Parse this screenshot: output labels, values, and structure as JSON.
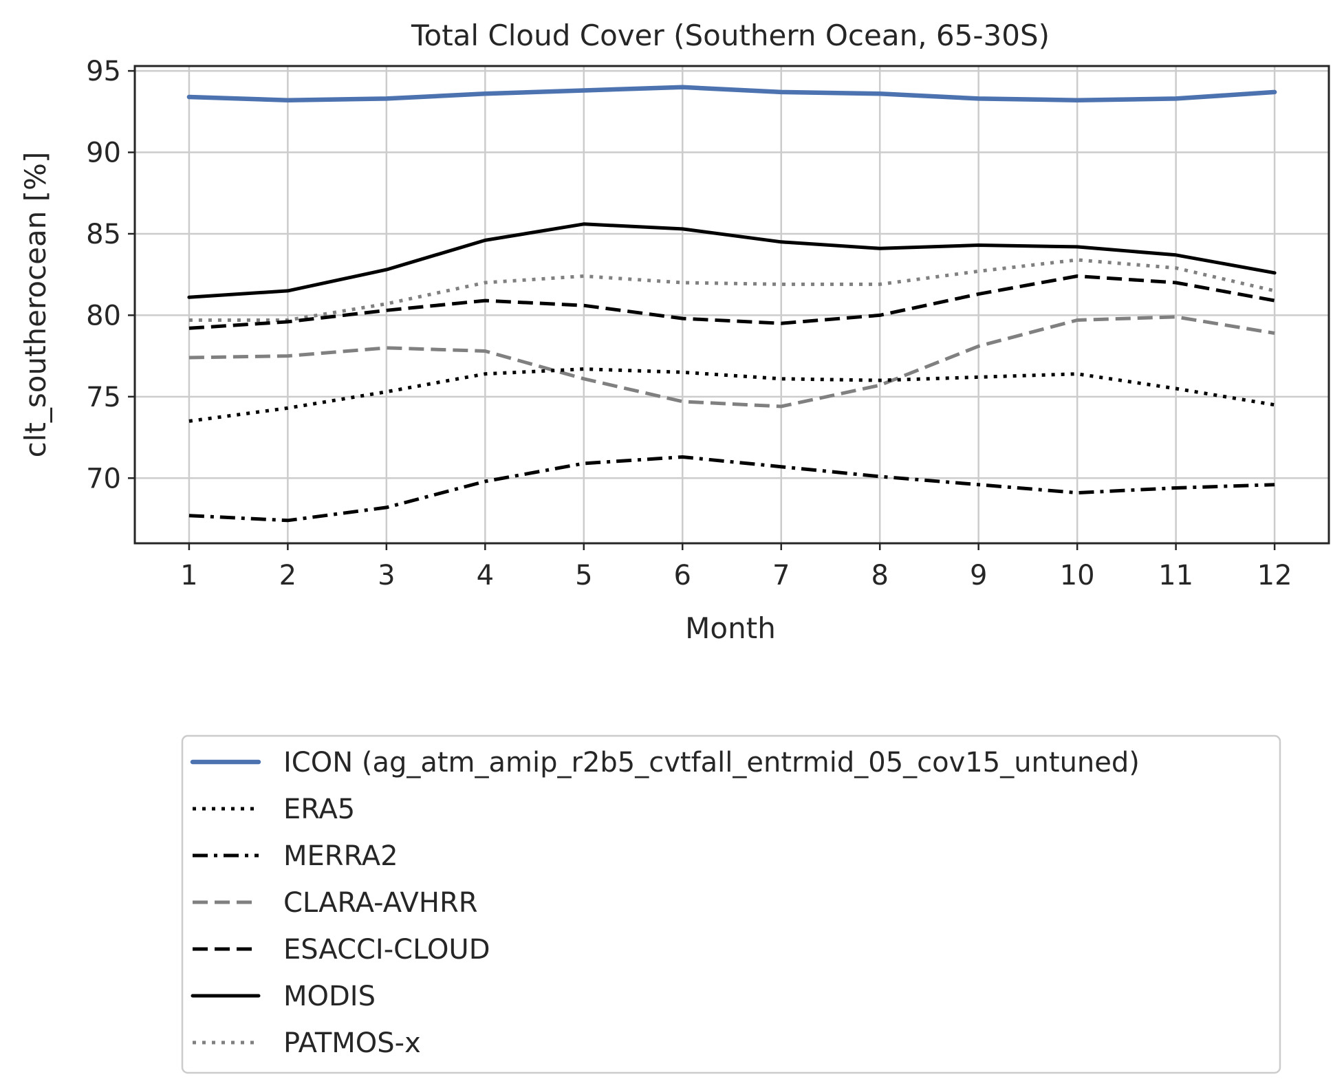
{
  "chart_data": {
    "type": "line",
    "title": "Total Cloud Cover (Southern Ocean, 65-30S)",
    "xlabel": "Month",
    "ylabel": "clt_southerocean [%]",
    "x": [
      1,
      2,
      3,
      4,
      5,
      6,
      7,
      8,
      9,
      10,
      11,
      12
    ],
    "xticks": [
      "1",
      "2",
      "3",
      "4",
      "5",
      "6",
      "7",
      "8",
      "9",
      "10",
      "11",
      "12"
    ],
    "xlim": [
      0.45,
      12.55
    ],
    "ylim": [
      66.0,
      95.3
    ],
    "yticks": [
      70,
      75,
      80,
      85,
      90,
      95
    ],
    "grid": true,
    "legend_position": "below",
    "series": [
      {
        "name": "ICON (ag_atm_amip_r2b5_cvtfall_entrmid_05_cov15_untuned)",
        "color": "#4c72b0",
        "style": "solid-thick",
        "values": [
          93.4,
          93.2,
          93.3,
          93.6,
          93.8,
          94.0,
          93.7,
          93.6,
          93.3,
          93.2,
          93.3,
          93.7
        ]
      },
      {
        "name": "ERA5",
        "color": "#000000",
        "style": "dotted",
        "values": [
          73.5,
          74.3,
          75.3,
          76.4,
          76.7,
          76.5,
          76.1,
          76.0,
          76.2,
          76.4,
          75.5,
          74.5
        ]
      },
      {
        "name": "MERRA2",
        "color": "#000000",
        "style": "dashdot",
        "values": [
          67.7,
          67.4,
          68.2,
          69.8,
          70.9,
          71.3,
          70.7,
          70.1,
          69.6,
          69.1,
          69.4,
          69.6
        ]
      },
      {
        "name": "CLARA-AVHRR",
        "color": "#808080",
        "style": "dashed",
        "values": [
          77.4,
          77.5,
          78.0,
          77.8,
          76.1,
          74.7,
          74.4,
          75.7,
          78.1,
          79.7,
          79.9,
          78.9
        ]
      },
      {
        "name": "ESACCI-CLOUD",
        "color": "#000000",
        "style": "dashed",
        "values": [
          79.2,
          79.6,
          80.3,
          80.9,
          80.6,
          79.8,
          79.5,
          80.0,
          81.3,
          82.4,
          82.0,
          80.9
        ]
      },
      {
        "name": "MODIS",
        "color": "#000000",
        "style": "solid",
        "values": [
          81.1,
          81.5,
          82.8,
          84.6,
          85.6,
          85.3,
          84.5,
          84.1,
          84.3,
          84.2,
          83.7,
          82.6
        ]
      },
      {
        "name": "PATMOS-x",
        "color": "#808080",
        "style": "dotted",
        "values": [
          79.7,
          79.7,
          80.7,
          82.0,
          82.4,
          82.0,
          81.9,
          81.9,
          82.7,
          83.4,
          82.9,
          81.5
        ]
      }
    ]
  }
}
